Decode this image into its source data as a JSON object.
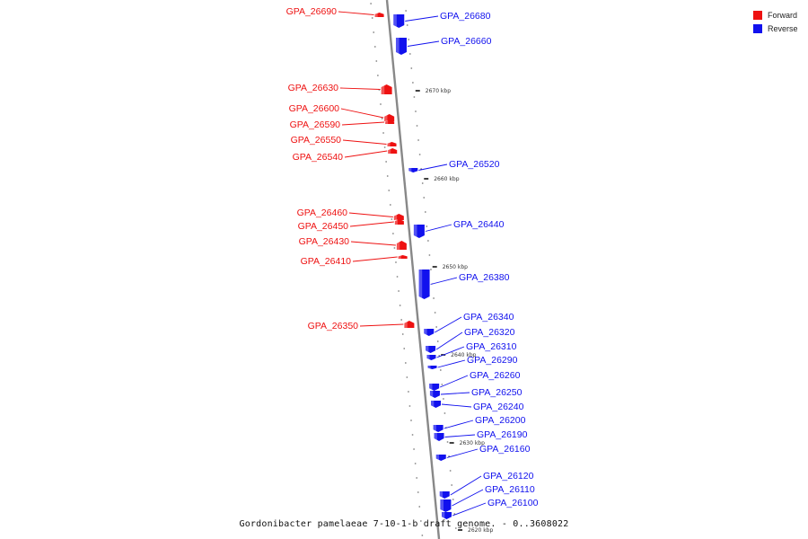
{
  "colors": {
    "forward": "#ee1111",
    "reverse": "#1111ee",
    "backbone": "#888888"
  },
  "legend": [
    {
      "label": "Forward",
      "color": "#ee1111"
    },
    {
      "label": "Reverse",
      "color": "#1111ee"
    }
  ],
  "caption": "Gordonibacter pamelaeae 7-10-1-b draft genome. - 0..3608022",
  "ticks": [
    {
      "label": "2670 kbp"
    },
    {
      "label": "2660 kbp"
    },
    {
      "label": "2650 kbp"
    },
    {
      "label": "2640 kbp"
    },
    {
      "label": "2630 kbp"
    },
    {
      "label": "2620 kbp"
    }
  ],
  "genes": [
    {
      "name": "GPA_26690",
      "strand": "forward"
    },
    {
      "name": "GPA_26680",
      "strand": "reverse"
    },
    {
      "name": "GPA_26660",
      "strand": "reverse"
    },
    {
      "name": "GPA_26630",
      "strand": "forward"
    },
    {
      "name": "GPA_26600",
      "strand": "forward"
    },
    {
      "name": "GPA_26590",
      "strand": "forward"
    },
    {
      "name": "GPA_26550",
      "strand": "forward"
    },
    {
      "name": "GPA_26540",
      "strand": "forward"
    },
    {
      "name": "GPA_26520",
      "strand": "reverse"
    },
    {
      "name": "GPA_26460",
      "strand": "forward"
    },
    {
      "name": "GPA_26450",
      "strand": "forward"
    },
    {
      "name": "GPA_26440",
      "strand": "reverse"
    },
    {
      "name": "GPA_26430",
      "strand": "forward"
    },
    {
      "name": "GPA_26410",
      "strand": "forward"
    },
    {
      "name": "GPA_26380",
      "strand": "reverse"
    },
    {
      "name": "GPA_26350",
      "strand": "forward"
    },
    {
      "name": "GPA_26340",
      "strand": "reverse"
    },
    {
      "name": "GPA_26320",
      "strand": "reverse"
    },
    {
      "name": "GPA_26310",
      "strand": "reverse"
    },
    {
      "name": "GPA_26290",
      "strand": "reverse"
    },
    {
      "name": "GPA_26260",
      "strand": "reverse"
    },
    {
      "name": "GPA_26250",
      "strand": "reverse"
    },
    {
      "name": "GPA_26240",
      "strand": "reverse"
    },
    {
      "name": "GPA_26200",
      "strand": "reverse"
    },
    {
      "name": "GPA_26190",
      "strand": "reverse"
    },
    {
      "name": "GPA_26160",
      "strand": "reverse"
    },
    {
      "name": "GPA_26120",
      "strand": "reverse"
    },
    {
      "name": "GPA_26110",
      "strand": "reverse"
    },
    {
      "name": "GPA_26100",
      "strand": "reverse"
    }
  ]
}
